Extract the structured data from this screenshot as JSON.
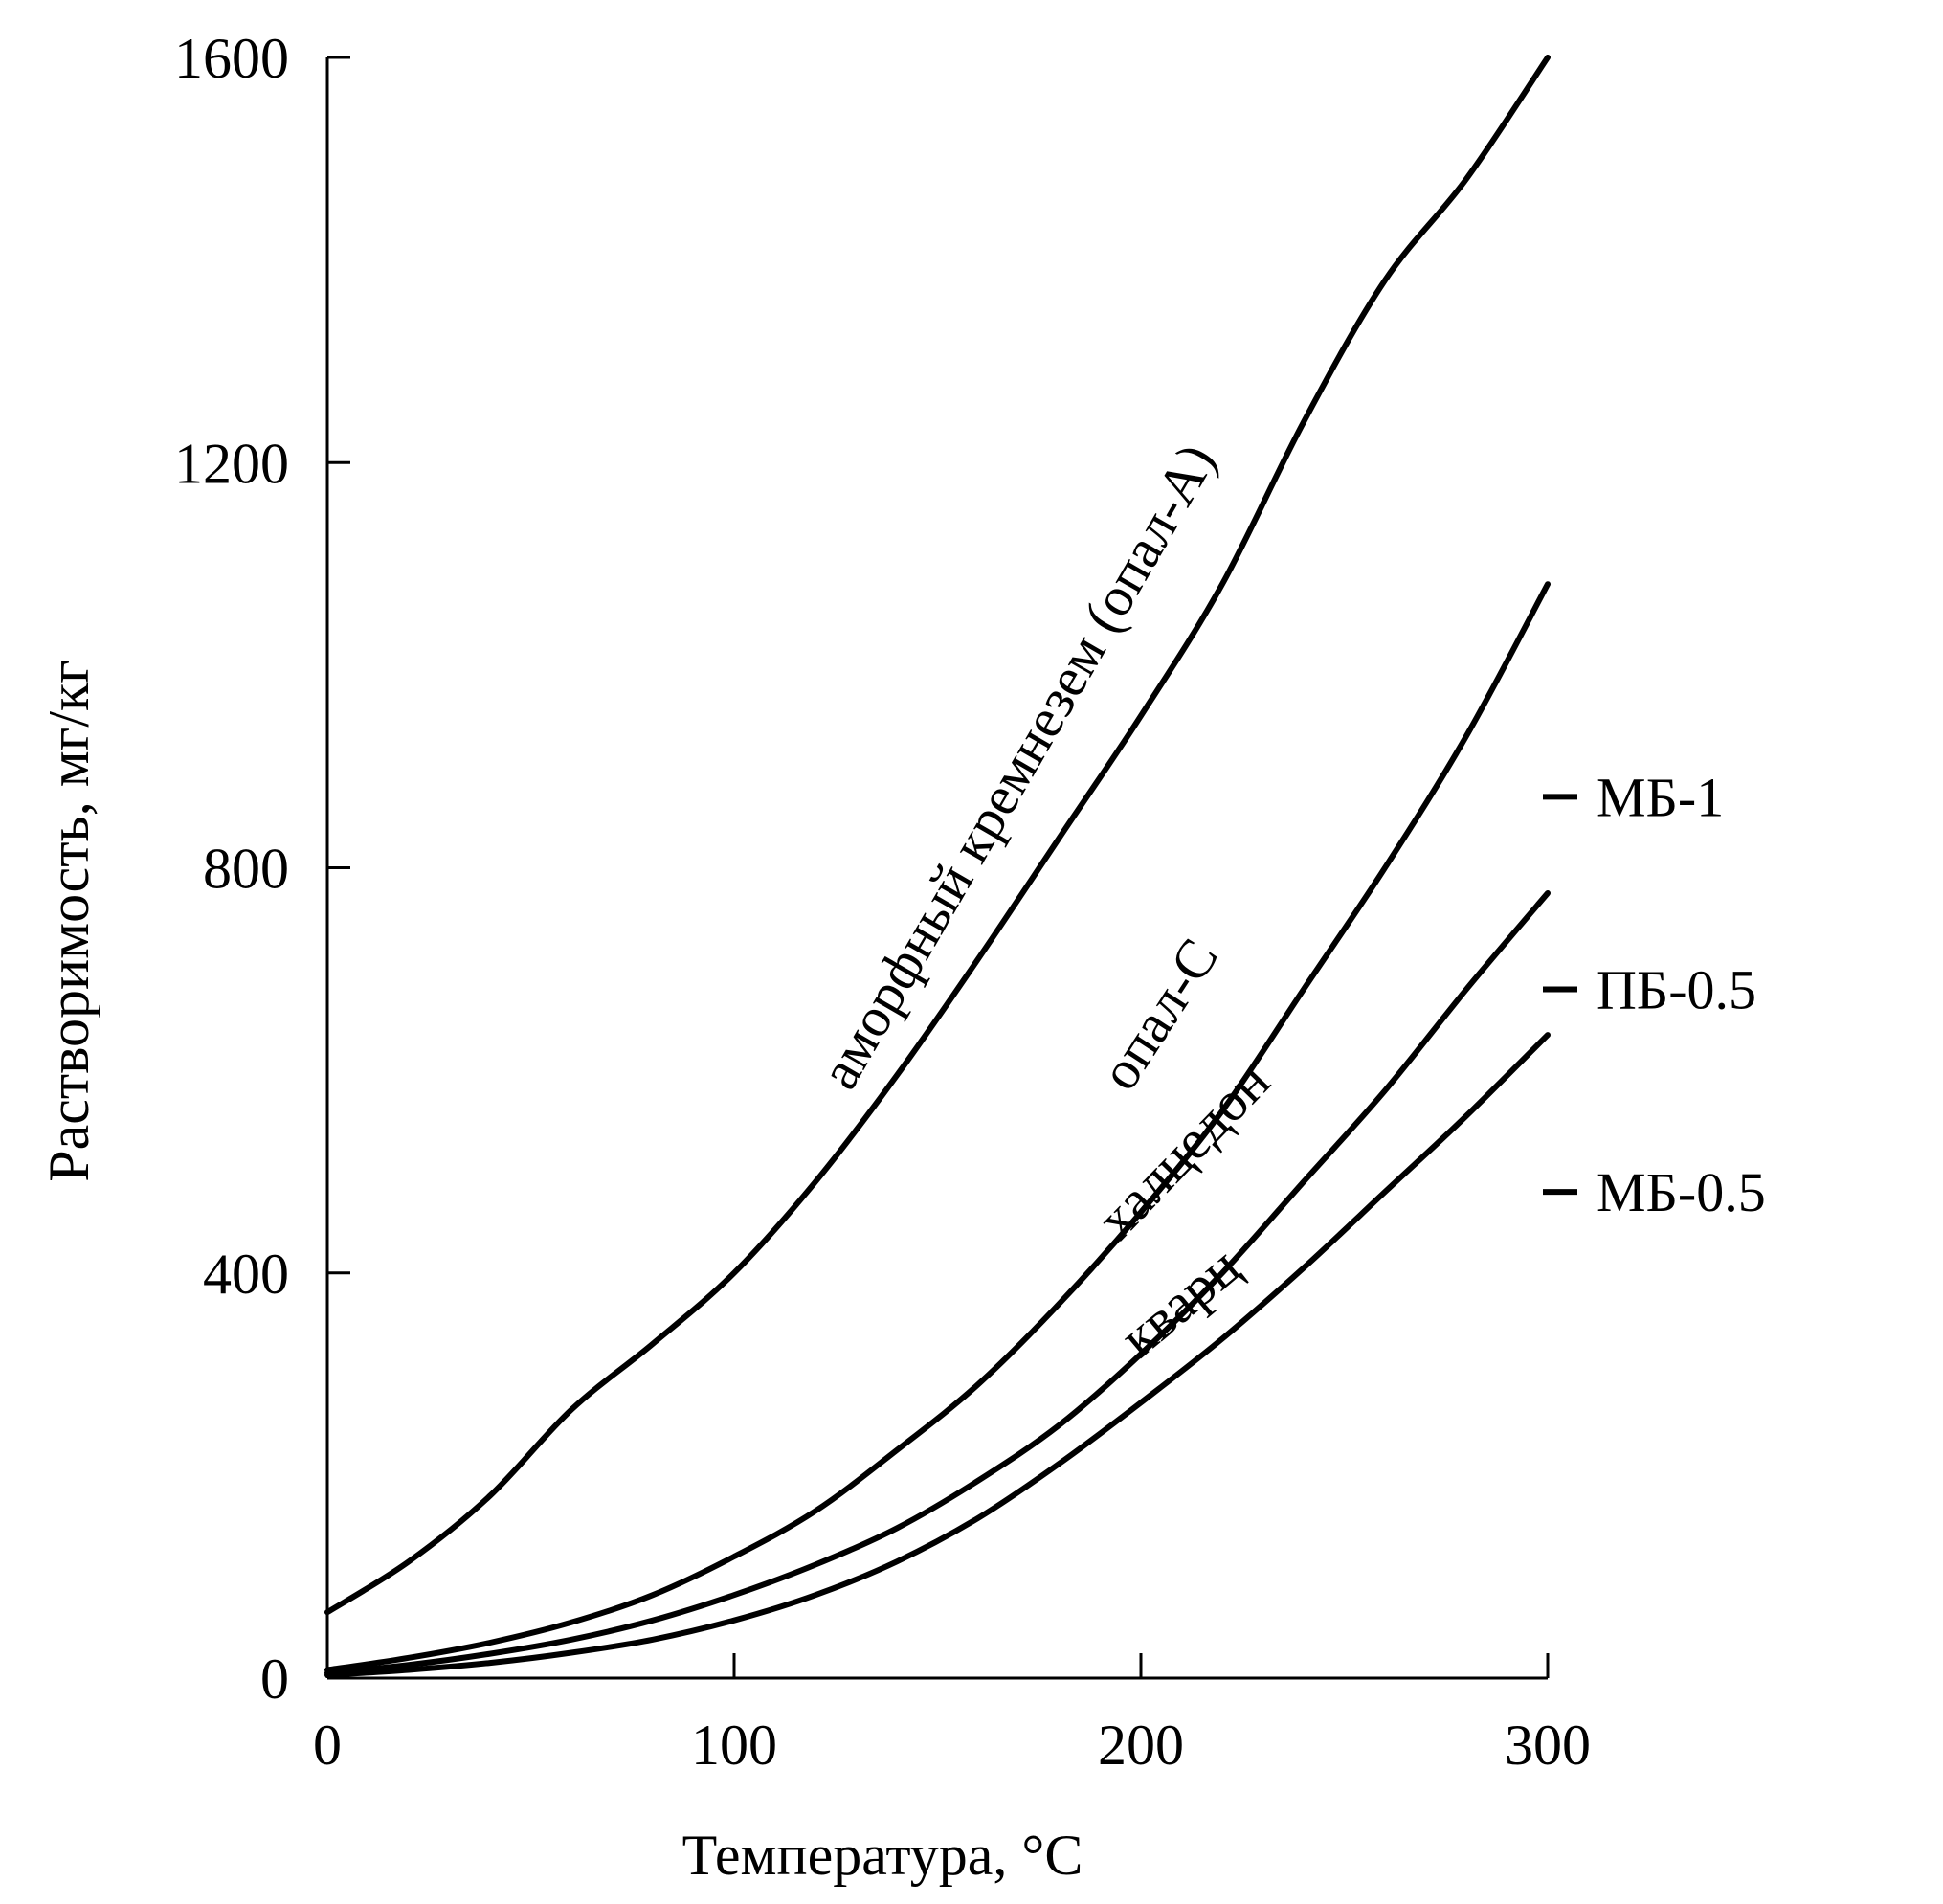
{
  "chart_data": {
    "type": "line",
    "xlabel": "Температура, °C",
    "ylabel": "Растворимость, мг/кг",
    "xlim": [
      0,
      300
    ],
    "ylim": [
      0,
      1600
    ],
    "xticks": [
      0,
      100,
      200,
      300
    ],
    "yticks": [
      0,
      400,
      800,
      1200,
      1600
    ],
    "grid": false,
    "series": [
      {
        "name": "аморфный кремнезем (опал-А)",
        "x": [
          0,
          20,
          40,
          60,
          80,
          100,
          120,
          140,
          160,
          180,
          200,
          220,
          240,
          260,
          280,
          300
        ],
        "values": [
          65,
          115,
          180,
          265,
          330,
          400,
          490,
          595,
          710,
          830,
          950,
          1080,
          1240,
          1380,
          1480,
          1600
        ]
      },
      {
        "name": "опал-С",
        "x": [
          0,
          20,
          40,
          60,
          80,
          100,
          120,
          140,
          160,
          180,
          200,
          220,
          240,
          260,
          280,
          300
        ],
        "values": [
          8,
          20,
          35,
          55,
          82,
          120,
          165,
          225,
          290,
          370,
          460,
          560,
          680,
          800,
          930,
          1080
        ]
      },
      {
        "name": "халцедон",
        "x": [
          0,
          20,
          40,
          60,
          80,
          100,
          120,
          140,
          160,
          180,
          200,
          220,
          240,
          260,
          280,
          300
        ],
        "values": [
          5,
          13,
          24,
          38,
          57,
          82,
          112,
          148,
          195,
          250,
          320,
          400,
          490,
          580,
          680,
          775
        ]
      },
      {
        "name": "кварц",
        "x": [
          0,
          20,
          40,
          60,
          80,
          100,
          120,
          140,
          160,
          180,
          200,
          220,
          240,
          260,
          280,
          300
        ],
        "values": [
          3,
          8,
          15,
          25,
          38,
          57,
          82,
          115,
          158,
          212,
          272,
          335,
          405,
          480,
          555,
          635
        ]
      }
    ],
    "markers": [
      {
        "label": "МБ-1",
        "value": 870
      },
      {
        "label": "ПБ-0.5",
        "value": 680
      },
      {
        "label": "МБ-0.5",
        "value": 480
      }
    ]
  }
}
